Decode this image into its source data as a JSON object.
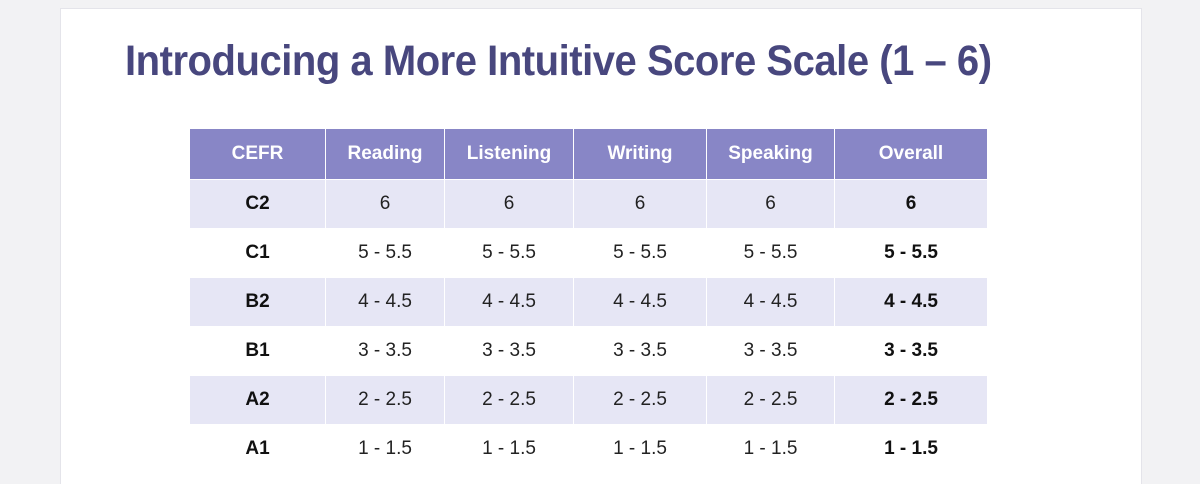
{
  "title": "Introducing a More Intuitive Score Scale (1 – 6)",
  "table": {
    "headers": [
      "CEFR",
      "Reading",
      "Listening",
      "Writing",
      "Speaking",
      "Overall"
    ],
    "rows": [
      {
        "level": "C2",
        "reading": "6",
        "listening": "6",
        "writing": "6",
        "speaking": "6",
        "overall": "6"
      },
      {
        "level": "C1",
        "reading": "5 - 5.5",
        "listening": "5 - 5.5",
        "writing": "5 - 5.5",
        "speaking": "5 - 5.5",
        "overall": "5 - 5.5"
      },
      {
        "level": "B2",
        "reading": "4 - 4.5",
        "listening": "4 - 4.5",
        "writing": "4 - 4.5",
        "speaking": "4 - 4.5",
        "overall": "4 - 4.5"
      },
      {
        "level": "B1",
        "reading": "3 - 3.5",
        "listening": "3 - 3.5",
        "writing": "3 - 3.5",
        "speaking": "3 - 3.5",
        "overall": "3 - 3.5"
      },
      {
        "level": "A2",
        "reading": "2 - 2.5",
        "listening": "2 - 2.5",
        "writing": "2 - 2.5",
        "speaking": "2 - 2.5",
        "overall": "2 - 2.5"
      },
      {
        "level": "A1",
        "reading": "1 - 1.5",
        "listening": "1 - 1.5",
        "writing": "1 - 1.5",
        "speaking": "1 - 1.5",
        "overall": "1 - 1.5"
      }
    ]
  },
  "colors": {
    "title": "#48477e",
    "header_bg": "#8886c6",
    "row_shade": "#e6e6f5"
  }
}
